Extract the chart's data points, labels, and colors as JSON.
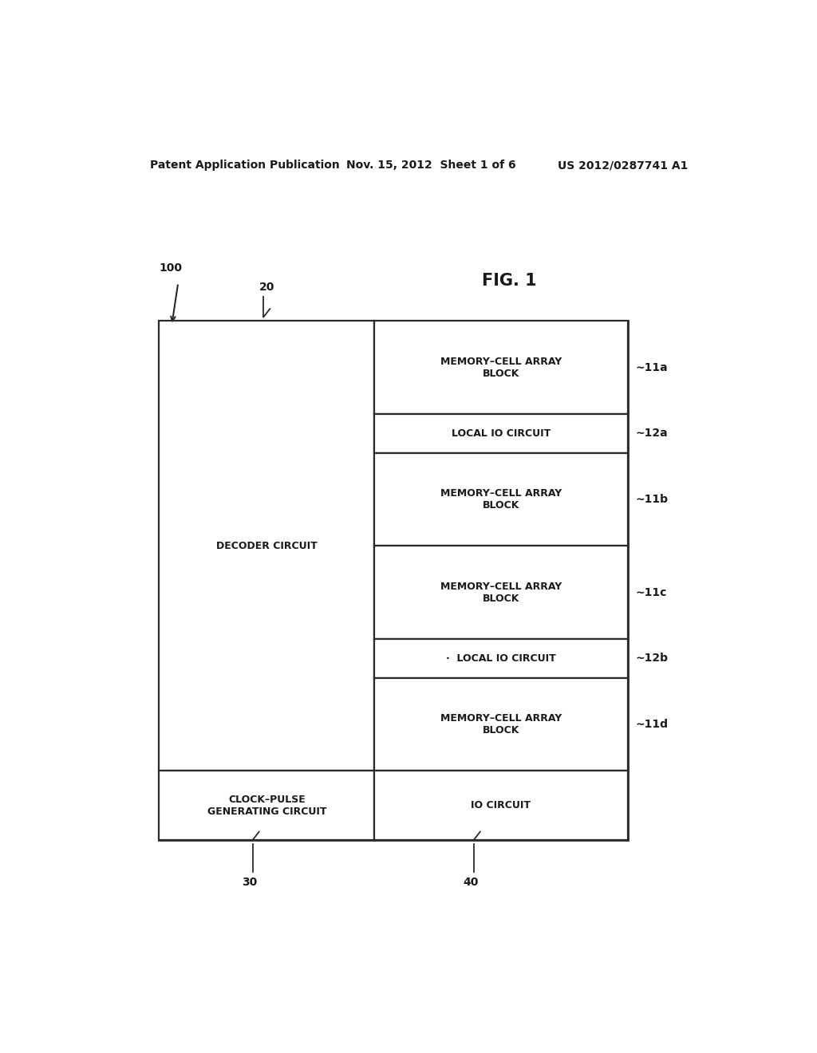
{
  "background_color": "#ffffff",
  "header_text": "Patent Application Publication",
  "header_date": "Nov. 15, 2012  Sheet 1 of 6",
  "header_patent": "US 2012/0287741 A1",
  "fig_label": "FIG. 1",
  "ref_100": "100",
  "ref_20": "20",
  "ref_30": "30",
  "ref_40": "40",
  "label_11a": "∼11a",
  "label_12a": "∼12a",
  "label_11b": "∼11b",
  "label_11c": "∼11c",
  "label_12b": "∼12b",
  "label_11d": "∼11d",
  "decoder_text": "DECODER CIRCUIT",
  "mem_11a_text": "MEMORY–CELL ARRAY\nBLOCK",
  "local_12a_text": "LOCAL IO CIRCUIT",
  "mem_11b_text": "MEMORY–CELL ARRAY\nBLOCK",
  "mem_11c_text": "MEMORY–CELL ARRAY\nBLOCK",
  "local_12b_text": "·  LOCAL IO CIRCUIT",
  "mem_11d_text": "MEMORY–CELL ARRAY\nBLOCK",
  "clock_text": "CLOCK–PULSE\nGENERATING CIRCUIT",
  "io_text": "IO CIRCUIT",
  "font_size_header": 10,
  "font_size_label": 10,
  "font_size_box": 9,
  "font_size_fig": 15,
  "font_size_ref": 10,
  "line_color": "#2a2a2a",
  "text_color": "#1a1a1a"
}
